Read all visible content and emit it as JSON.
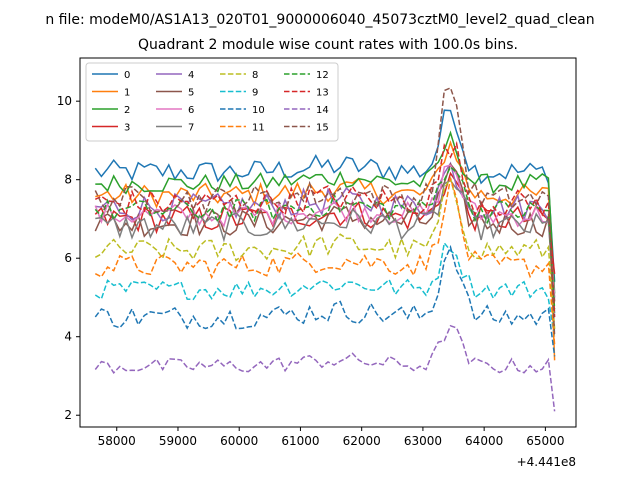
{
  "chart_data": {
    "type": "line",
    "suptitle": "n file: modeM0/AS1A13_020T01_9000006040_45073cztM0_level2_quad_clean",
    "title": "Quadrant 2 module wise count rates with 100.0s bins.",
    "xlabel": "",
    "ylabel": "",
    "x_offset_label": "+4.441e8",
    "x_range": [
      57650,
      65150
    ],
    "xlim": [
      57400,
      65500
    ],
    "ylim": [
      1.7,
      11.1
    ],
    "x_ticks": [
      58000,
      59000,
      60000,
      61000,
      62000,
      63000,
      64000,
      65000
    ],
    "y_ticks": [
      2,
      4,
      6,
      8,
      10
    ],
    "grid": false,
    "legend": {
      "position": "top-left",
      "columns": 4
    },
    "series": [
      {
        "name": "0",
        "color": "#1f77b4",
        "dash": "solid",
        "base": 8.2,
        "amp": 0.3,
        "flare": 1.6,
        "drop": 5.4
      },
      {
        "name": "1",
        "color": "#ff7f0e",
        "dash": "solid",
        "base": 7.6,
        "amp": 0.3,
        "flare": 1.3,
        "drop": 3.4
      },
      {
        "name": "2",
        "color": "#2ca02c",
        "dash": "solid",
        "base": 7.9,
        "amp": 0.25,
        "flare": 1.1,
        "drop": 5.1
      },
      {
        "name": "3",
        "color": "#d62728",
        "dash": "solid",
        "base": 7.0,
        "amp": 0.35,
        "flare": 1.1,
        "drop": 5.6
      },
      {
        "name": "4",
        "color": "#9467bd",
        "dash": "solid",
        "base": 7.3,
        "amp": 0.35,
        "flare": 1.0,
        "drop": 5.0
      },
      {
        "name": "5",
        "color": "#8c564b",
        "dash": "solid",
        "base": 6.9,
        "amp": 0.35,
        "flare": 1.2,
        "drop": 4.9
      },
      {
        "name": "6",
        "color": "#e377c2",
        "dash": "solid",
        "base": 7.1,
        "amp": 0.3,
        "flare": 1.3,
        "drop": 5.0
      },
      {
        "name": "7",
        "color": "#7f7f7f",
        "dash": "solid",
        "base": 6.8,
        "amp": 0.35,
        "flare": 1.2,
        "drop": 4.6
      },
      {
        "name": "8",
        "color": "#bcbd22",
        "dash": "dashed",
        "base": 6.2,
        "amp": 0.3,
        "flare": 1.6,
        "drop": 4.2
      },
      {
        "name": "9",
        "color": "#17becf",
        "dash": "dashed",
        "base": 5.2,
        "amp": 0.25,
        "flare": 1.2,
        "drop": 4.0
      },
      {
        "name": "10",
        "color": "#1f77b4",
        "dash": "dashed",
        "base": 4.5,
        "amp": 0.3,
        "flare": 1.8,
        "drop": 3.5
      },
      {
        "name": "11",
        "color": "#ff7f0e",
        "dash": "dashed",
        "base": 5.8,
        "amp": 0.3,
        "flare": 2.0,
        "drop": 3.8
      },
      {
        "name": "12",
        "color": "#2ca02c",
        "dash": "dashed",
        "base": 7.2,
        "amp": 0.3,
        "flare": 1.3,
        "drop": 4.7
      },
      {
        "name": "13",
        "color": "#d62728",
        "dash": "dashed",
        "base": 7.4,
        "amp": 0.35,
        "flare": 1.5,
        "drop": 4.5
      },
      {
        "name": "14",
        "color": "#9467bd",
        "dash": "dashed",
        "base": 3.25,
        "amp": 0.2,
        "flare": 1.0,
        "drop": 2.1
      },
      {
        "name": "15",
        "color": "#8c564b",
        "dash": "dashed",
        "base": 7.5,
        "amp": 0.35,
        "flare": 3.0,
        "drop": 4.0
      }
    ]
  }
}
